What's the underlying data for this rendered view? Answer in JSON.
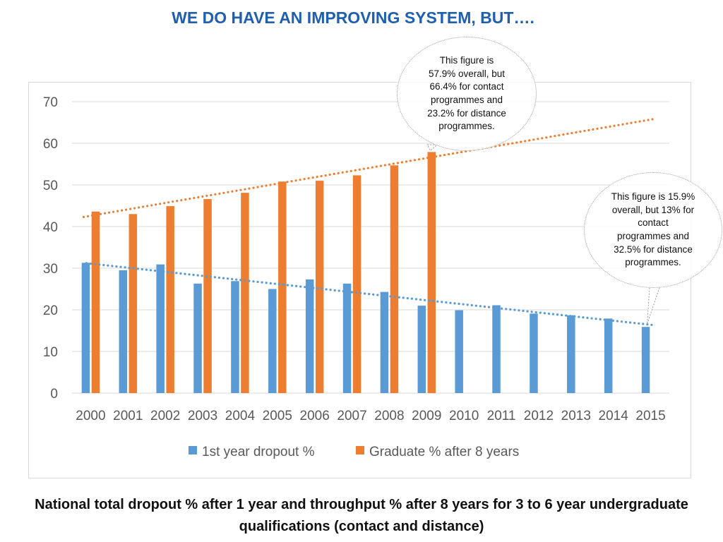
{
  "slide": {
    "title": "WE DO HAVE AN IMPROVING SYSTEM, BUT….",
    "caption": "National total dropout % after 1 year and throughput %  after 8 years for 3 to 6 year undergraduate qualifications (contact and distance)"
  },
  "callouts": {
    "graduate": "This figure is 57.9% overall, but  66.4% for contact programmes and 23.2% for distance programmes.",
    "dropout": "This figure is 15.9% overall, but 13% for contact programmes and 32.5% for distance programmes."
  },
  "colors": {
    "title": "#1f5fb0",
    "dropout": "#5b9bd5",
    "graduate": "#ed7d31",
    "grid": "#d9d9d9",
    "tick": "#595959"
  },
  "chart_data": {
    "type": "bar",
    "title": "",
    "xlabel": "",
    "ylabel": "",
    "ylim": [
      0,
      70
    ],
    "yticks": [
      0,
      10,
      20,
      30,
      40,
      50,
      60,
      70
    ],
    "grid": true,
    "legend_position": "bottom",
    "categories": [
      "2000",
      "2001",
      "2002",
      "2003",
      "2004",
      "2005",
      "2006",
      "2007",
      "2008",
      "2009",
      "2010",
      "2011",
      "2012",
      "2013",
      "2014",
      "2015"
    ],
    "series": [
      {
        "name": "1st year dropout %",
        "color": "#5b9bd5",
        "values": [
          31.3,
          29.5,
          30.9,
          26.3,
          26.9,
          25.0,
          27.3,
          26.3,
          24.3,
          21.0,
          19.9,
          21.1,
          19.1,
          18.7,
          17.9,
          15.9
        ],
        "trendline": {
          "type": "linear",
          "start": 31.2,
          "end": 16.3
        }
      },
      {
        "name": "Graduate % after 8 years",
        "color": "#ed7d31",
        "values": [
          43.6,
          43.0,
          44.9,
          46.6,
          48.1,
          50.8,
          51.0,
          52.3,
          54.7,
          57.9,
          null,
          null,
          null,
          null,
          null,
          null
        ],
        "trendline": {
          "type": "linear",
          "start": 42.3,
          "end": 65.9
        }
      }
    ]
  }
}
